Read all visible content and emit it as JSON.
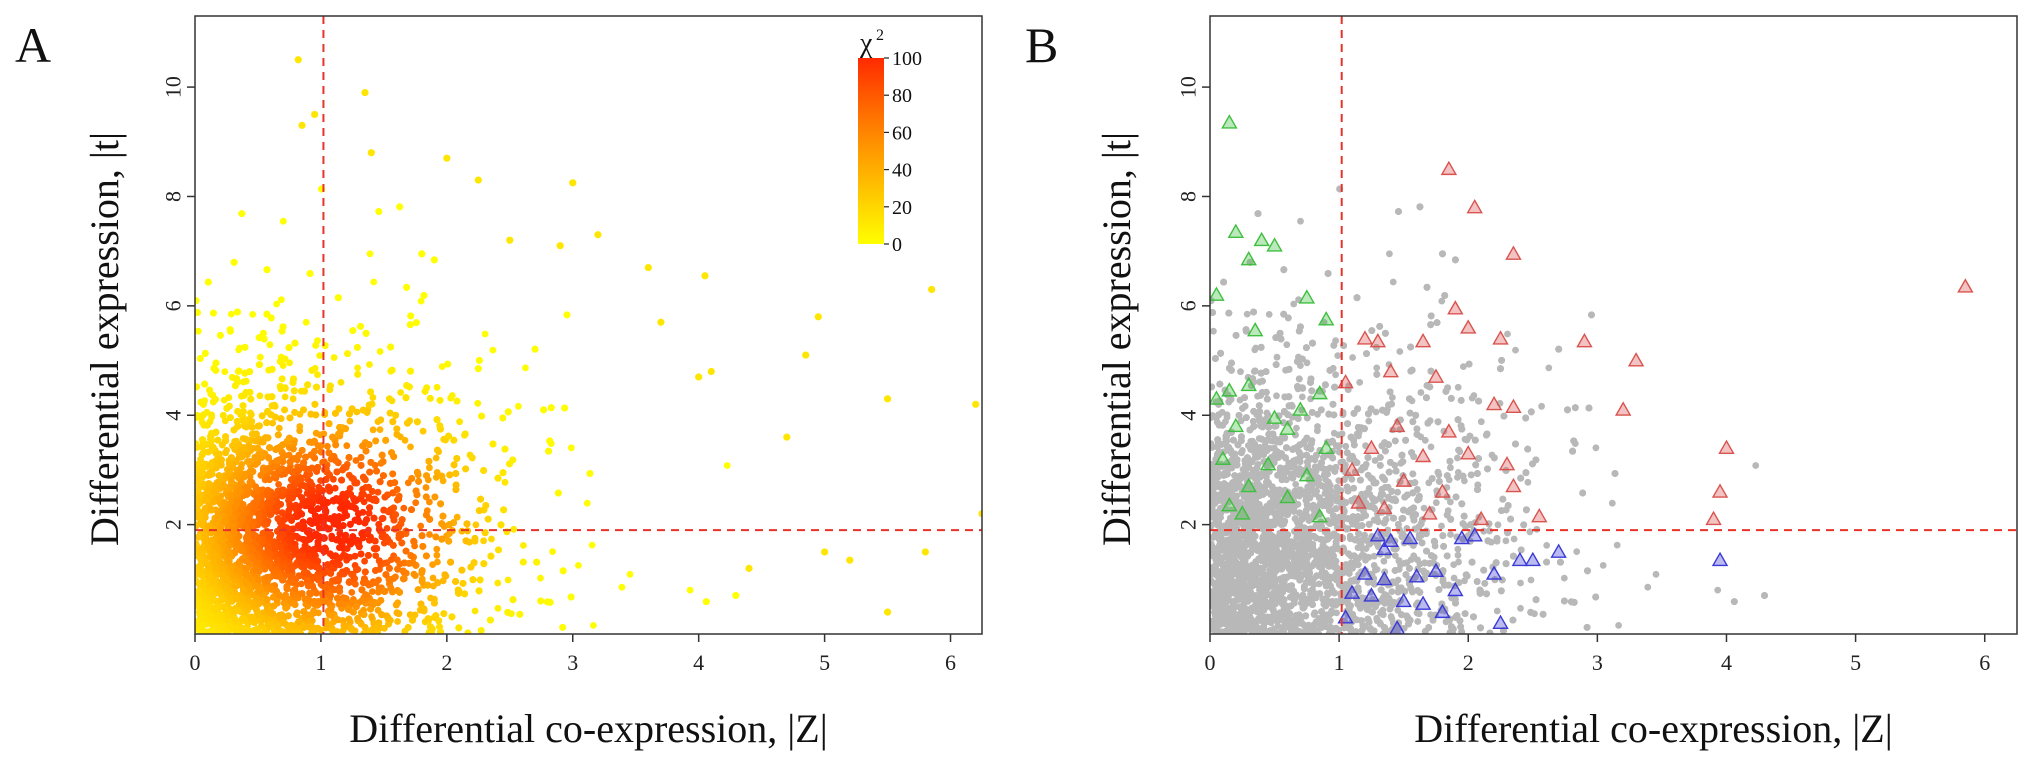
{
  "chart_data": [
    {
      "panel_label": "A",
      "type": "scatter",
      "xlabel": "Differential co-expression, |Z|",
      "ylabel": "Differential  expression, |t|",
      "xlim": [
        0,
        6.25
      ],
      "ylim": [
        0,
        11.3
      ],
      "xticks": [
        "0",
        "1",
        "2",
        "3",
        "4",
        "5",
        "6"
      ],
      "yticks": [
        "2",
        "4",
        "6",
        "8",
        "10"
      ],
      "reference_lines": {
        "vertical_x": 1.02,
        "horizontal_y": 1.9,
        "color": "#e8332b",
        "style": "dashed"
      },
      "color_variable": "χ²",
      "colorbar": {
        "title": "χ",
        "title_superscript": "2",
        "ticks": [
          "100",
          "80",
          "60",
          "40",
          "20",
          "0"
        ],
        "range": [
          0,
          100
        ],
        "colors": [
          "#ffff00",
          "#ffcc00",
          "#ff9a00",
          "#ff6400",
          "#ff2a00"
        ]
      },
      "sample_points": [
        {
          "x": 0.82,
          "y": 10.5
        },
        {
          "x": 1.35,
          "y": 9.9
        },
        {
          "x": 0.95,
          "y": 9.5
        },
        {
          "x": 0.85,
          "y": 9.3
        },
        {
          "x": 1.4,
          "y": 8.8
        },
        {
          "x": 2.0,
          "y": 8.7
        },
        {
          "x": 2.25,
          "y": 8.3
        },
        {
          "x": 3.0,
          "y": 8.25
        },
        {
          "x": 2.5,
          "y": 7.2
        },
        {
          "x": 3.2,
          "y": 7.3
        },
        {
          "x": 2.9,
          "y": 7.1
        },
        {
          "x": 3.6,
          "y": 6.7
        },
        {
          "x": 4.05,
          "y": 6.55
        },
        {
          "x": 4.95,
          "y": 5.8
        },
        {
          "x": 3.7,
          "y": 5.7
        },
        {
          "x": 4.85,
          "y": 5.1
        },
        {
          "x": 4.1,
          "y": 4.8
        },
        {
          "x": 5.5,
          "y": 4.3
        },
        {
          "x": 5.85,
          "y": 6.3
        },
        {
          "x": 6.2,
          "y": 4.2
        },
        {
          "x": 4.0,
          "y": 4.7
        },
        {
          "x": 4.7,
          "y": 3.6
        },
        {
          "x": 5.0,
          "y": 1.5
        },
        {
          "x": 5.2,
          "y": 1.35
        },
        {
          "x": 5.8,
          "y": 1.5
        },
        {
          "x": 5.5,
          "y": 0.4
        },
        {
          "x": 6.25,
          "y": 2.2
        },
        {
          "x": 4.4,
          "y": 1.2
        }
      ]
    },
    {
      "panel_label": "B",
      "type": "scatter",
      "xlabel": "Differential co-expression, |Z|",
      "ylabel": "Differential  expression, |t|",
      "xlim": [
        0,
        6.25
      ],
      "ylim": [
        0,
        11.3
      ],
      "xticks": [
        "0",
        "1",
        "2",
        "3",
        "4",
        "5",
        "6"
      ],
      "yticks": [
        "2",
        "4",
        "6",
        "8",
        "10"
      ],
      "reference_lines": {
        "vertical_x": 1.02,
        "horizontal_y": 1.9,
        "color": "#e8332b",
        "style": "dashed"
      },
      "background_points_color": "#b8b8b8",
      "marker_groups": [
        {
          "marker": "triangle",
          "color": "#d9534f",
          "points": [
            {
              "x": 1.85,
              "y": 8.5
            },
            {
              "x": 2.05,
              "y": 7.8
            },
            {
              "x": 2.35,
              "y": 6.95
            },
            {
              "x": 5.85,
              "y": 6.35
            },
            {
              "x": 1.9,
              "y": 5.95
            },
            {
              "x": 2.25,
              "y": 5.4
            },
            {
              "x": 2.9,
              "y": 5.35
            },
            {
              "x": 3.3,
              "y": 5.0
            },
            {
              "x": 1.2,
              "y": 5.4
            },
            {
              "x": 1.3,
              "y": 5.35
            },
            {
              "x": 1.65,
              "y": 5.35
            },
            {
              "x": 2.0,
              "y": 5.6
            },
            {
              "x": 1.05,
              "y": 4.6
            },
            {
              "x": 1.4,
              "y": 4.8
            },
            {
              "x": 1.75,
              "y": 4.7
            },
            {
              "x": 2.2,
              "y": 4.2
            },
            {
              "x": 2.35,
              "y": 4.15
            },
            {
              "x": 3.2,
              "y": 4.1
            },
            {
              "x": 1.45,
              "y": 3.8
            },
            {
              "x": 1.85,
              "y": 3.7
            },
            {
              "x": 1.25,
              "y": 3.4
            },
            {
              "x": 1.65,
              "y": 3.25
            },
            {
              "x": 2.0,
              "y": 3.3
            },
            {
              "x": 2.3,
              "y": 3.1
            },
            {
              "x": 1.1,
              "y": 3.0
            },
            {
              "x": 1.5,
              "y": 2.8
            },
            {
              "x": 1.8,
              "y": 2.6
            },
            {
              "x": 2.35,
              "y": 2.7
            },
            {
              "x": 1.15,
              "y": 2.4
            },
            {
              "x": 1.35,
              "y": 2.3
            },
            {
              "x": 1.7,
              "y": 2.2
            },
            {
              "x": 2.1,
              "y": 2.1
            },
            {
              "x": 2.55,
              "y": 2.15
            },
            {
              "x": 3.95,
              "y": 2.6
            },
            {
              "x": 3.9,
              "y": 2.1
            },
            {
              "x": 4.0,
              "y": 3.4
            }
          ]
        },
        {
          "marker": "triangle",
          "color": "#3fbf3f",
          "points": [
            {
              "x": 0.15,
              "y": 9.35
            },
            {
              "x": 0.2,
              "y": 7.35
            },
            {
              "x": 0.4,
              "y": 7.2
            },
            {
              "x": 0.5,
              "y": 7.1
            },
            {
              "x": 0.3,
              "y": 6.85
            },
            {
              "x": 0.05,
              "y": 6.2
            },
            {
              "x": 0.75,
              "y": 6.15
            },
            {
              "x": 0.9,
              "y": 5.75
            },
            {
              "x": 0.35,
              "y": 5.55
            },
            {
              "x": 0.3,
              "y": 4.55
            },
            {
              "x": 0.15,
              "y": 4.45
            },
            {
              "x": 0.85,
              "y": 4.4
            },
            {
              "x": 0.05,
              "y": 4.3
            },
            {
              "x": 0.7,
              "y": 4.1
            },
            {
              "x": 0.5,
              "y": 3.95
            },
            {
              "x": 0.6,
              "y": 3.75
            },
            {
              "x": 0.2,
              "y": 3.8
            },
            {
              "x": 0.9,
              "y": 3.4
            },
            {
              "x": 0.1,
              "y": 3.2
            },
            {
              "x": 0.45,
              "y": 3.1
            },
            {
              "x": 0.75,
              "y": 2.9
            },
            {
              "x": 0.3,
              "y": 2.7
            },
            {
              "x": 0.6,
              "y": 2.5
            },
            {
              "x": 0.15,
              "y": 2.35
            },
            {
              "x": 0.25,
              "y": 2.2
            },
            {
              "x": 0.85,
              "y": 2.15
            }
          ]
        },
        {
          "marker": "triangle",
          "color": "#3a3ad6",
          "points": [
            {
              "x": 1.3,
              "y": 1.8
            },
            {
              "x": 1.4,
              "y": 1.7
            },
            {
              "x": 1.55,
              "y": 1.75
            },
            {
              "x": 1.95,
              "y": 1.75
            },
            {
              "x": 2.05,
              "y": 1.8
            },
            {
              "x": 1.35,
              "y": 1.55
            },
            {
              "x": 1.2,
              "y": 1.1
            },
            {
              "x": 1.35,
              "y": 1.0
            },
            {
              "x": 1.6,
              "y": 1.05
            },
            {
              "x": 1.75,
              "y": 1.15
            },
            {
              "x": 1.1,
              "y": 0.75
            },
            {
              "x": 1.25,
              "y": 0.7
            },
            {
              "x": 1.5,
              "y": 0.6
            },
            {
              "x": 1.9,
              "y": 0.8
            },
            {
              "x": 2.2,
              "y": 1.1
            },
            {
              "x": 2.4,
              "y": 1.35
            },
            {
              "x": 2.5,
              "y": 1.35
            },
            {
              "x": 2.7,
              "y": 1.5
            },
            {
              "x": 1.05,
              "y": 0.3
            },
            {
              "x": 1.45,
              "y": 0.1
            },
            {
              "x": 1.8,
              "y": 0.4
            },
            {
              "x": 2.25,
              "y": 0.2
            },
            {
              "x": 3.95,
              "y": 1.35
            },
            {
              "x": 1.65,
              "y": 0.55
            }
          ]
        }
      ]
    }
  ]
}
